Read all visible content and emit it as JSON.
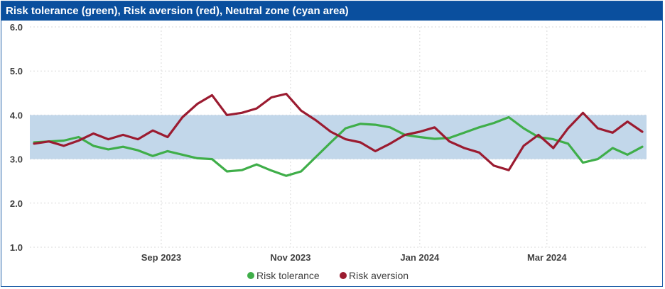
{
  "chart_data": {
    "type": "line",
    "title": "Risk tolerance (green), Risk aversion (red), Neutral zone (cyan area)",
    "ylim": [
      1.0,
      6.0
    ],
    "yticks": [
      "1.0",
      "2.0",
      "3.0",
      "4.0",
      "5.0",
      "6.0"
    ],
    "xlim": [
      "2023-07-01",
      "2024-04-17"
    ],
    "xticks": [
      {
        "date": "2023-09-01",
        "label": "Sep 2023"
      },
      {
        "date": "2023-11-01",
        "label": "Nov 2023"
      },
      {
        "date": "2024-01-01",
        "label": "Jan 2024"
      },
      {
        "date": "2024-03-01",
        "label": "Mar 2024"
      }
    ],
    "grid": true,
    "legend_position": "bottom",
    "band": {
      "lower": 3.0,
      "upper": 4.0,
      "color": "#c2d7ea"
    },
    "x": [
      "2023-07-03",
      "2023-07-10",
      "2023-07-17",
      "2023-07-24",
      "2023-07-31",
      "2023-08-07",
      "2023-08-14",
      "2023-08-21",
      "2023-08-28",
      "2023-09-04",
      "2023-09-11",
      "2023-09-18",
      "2023-09-25",
      "2023-10-02",
      "2023-10-09",
      "2023-10-16",
      "2023-10-23",
      "2023-10-30",
      "2023-11-06",
      "2023-11-13",
      "2023-11-20",
      "2023-11-27",
      "2023-12-04",
      "2023-12-11",
      "2023-12-18",
      "2023-12-25",
      "2024-01-01",
      "2024-01-08",
      "2024-01-15",
      "2024-01-22",
      "2024-01-29",
      "2024-02-05",
      "2024-02-12",
      "2024-02-19",
      "2024-02-26",
      "2024-03-04",
      "2024-03-11",
      "2024-03-18",
      "2024-03-25",
      "2024-04-01",
      "2024-04-08",
      "2024-04-15"
    ],
    "series": [
      {
        "name": "Risk tolerance",
        "color": "#3fae49",
        "values": [
          3.38,
          3.4,
          3.42,
          3.5,
          3.3,
          3.22,
          3.28,
          3.2,
          3.07,
          3.18,
          3.1,
          3.02,
          3.0,
          2.72,
          2.75,
          2.88,
          2.74,
          2.62,
          2.72,
          3.05,
          3.38,
          3.7,
          3.8,
          3.78,
          3.72,
          3.55,
          3.5,
          3.46,
          3.48,
          3.6,
          3.72,
          3.82,
          3.95,
          3.7,
          3.5,
          3.45,
          3.35,
          2.92,
          3.0,
          3.25,
          3.1,
          3.28
        ]
      },
      {
        "name": "Risk aversion",
        "color": "#9b1b30",
        "values": [
          3.35,
          3.4,
          3.3,
          3.42,
          3.58,
          3.45,
          3.55,
          3.45,
          3.65,
          3.5,
          3.95,
          4.25,
          4.45,
          4.0,
          4.05,
          4.15,
          4.4,
          4.48,
          4.1,
          3.88,
          3.62,
          3.45,
          3.38,
          3.18,
          3.35,
          3.55,
          3.62,
          3.72,
          3.4,
          3.25,
          3.15,
          2.85,
          2.75,
          3.3,
          3.55,
          3.25,
          3.7,
          4.05,
          3.7,
          3.6,
          3.85,
          3.62
        ]
      }
    ]
  }
}
